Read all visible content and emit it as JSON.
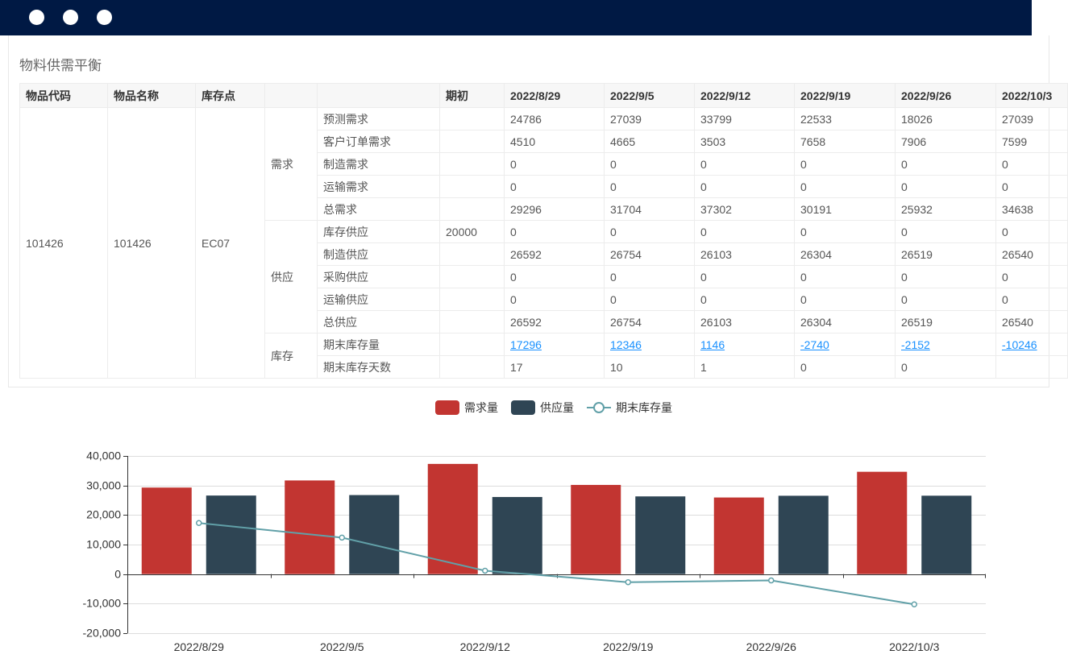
{
  "panel": {
    "title": "物料供需平衡"
  },
  "table": {
    "headers": [
      "物品代码",
      "物品名称",
      "库存点",
      "",
      "",
      "期初",
      "2022/8/29",
      "2022/9/5",
      "2022/9/12",
      "2022/9/19",
      "2022/9/26",
      "2022/10/3"
    ],
    "item_code": "101426",
    "item_name": "101426",
    "location": "EC07",
    "groups": [
      {
        "label": "需求",
        "rows": [
          {
            "label": "预测需求",
            "initial": "",
            "values": [
              "24786",
              "27039",
              "33799",
              "22533",
              "18026",
              "27039"
            ]
          },
          {
            "label": "客户订单需求",
            "initial": "",
            "values": [
              "4510",
              "4665",
              "3503",
              "7658",
              "7906",
              "7599"
            ]
          },
          {
            "label": "制造需求",
            "initial": "",
            "values": [
              "0",
              "0",
              "0",
              "0",
              "0",
              "0"
            ]
          },
          {
            "label": "运输需求",
            "initial": "",
            "values": [
              "0",
              "0",
              "0",
              "0",
              "0",
              "0"
            ]
          },
          {
            "label": "总需求",
            "initial": "",
            "values": [
              "29296",
              "31704",
              "37302",
              "30191",
              "25932",
              "34638"
            ]
          }
        ]
      },
      {
        "label": "供应",
        "rows": [
          {
            "label": "库存供应",
            "initial": "20000",
            "values": [
              "0",
              "0",
              "0",
              "0",
              "0",
              "0"
            ]
          },
          {
            "label": "制造供应",
            "initial": "",
            "values": [
              "26592",
              "26754",
              "26103",
              "26304",
              "26519",
              "26540"
            ]
          },
          {
            "label": "采购供应",
            "initial": "",
            "values": [
              "0",
              "0",
              "0",
              "0",
              "0",
              "0"
            ]
          },
          {
            "label": "运输供应",
            "initial": "",
            "values": [
              "0",
              "0",
              "0",
              "0",
              "0",
              "0"
            ]
          },
          {
            "label": "总供应",
            "initial": "",
            "values": [
              "26592",
              "26754",
              "26103",
              "26304",
              "26519",
              "26540"
            ]
          }
        ]
      },
      {
        "label": "库存",
        "rows": [
          {
            "label": "期末库存量",
            "initial": "",
            "values": [
              "17296",
              "12346",
              "1146",
              "-2740",
              "-2152",
              "-10246"
            ],
            "link": true
          },
          {
            "label": "期末库存天数",
            "initial": "",
            "values": [
              "17",
              "10",
              "1",
              "0",
              "0",
              ""
            ]
          }
        ]
      }
    ]
  },
  "chart_data": {
    "type": "bar",
    "categories": [
      "2022/8/29",
      "2022/9/5",
      "2022/9/12",
      "2022/9/19",
      "2022/9/26",
      "2022/10/3"
    ],
    "series": [
      {
        "name": "需求量",
        "type": "bar",
        "color": "#c23531",
        "values": [
          29296,
          31704,
          37302,
          30191,
          25932,
          34638
        ]
      },
      {
        "name": "供应量",
        "type": "bar",
        "color": "#2f4554",
        "values": [
          26592,
          26754,
          26103,
          26304,
          26519,
          26540
        ]
      },
      {
        "name": "期末库存量",
        "type": "line",
        "color": "#61a0a8",
        "values": [
          17296,
          12346,
          1146,
          -2740,
          -2152,
          -10246
        ]
      }
    ],
    "ylim": [
      -20000,
      40000
    ],
    "yticks": [
      "40,000",
      "30,000",
      "20,000",
      "10,000",
      "0",
      "-10,000",
      "-20,000"
    ],
    "legend_position": "top-center",
    "grid": true
  }
}
